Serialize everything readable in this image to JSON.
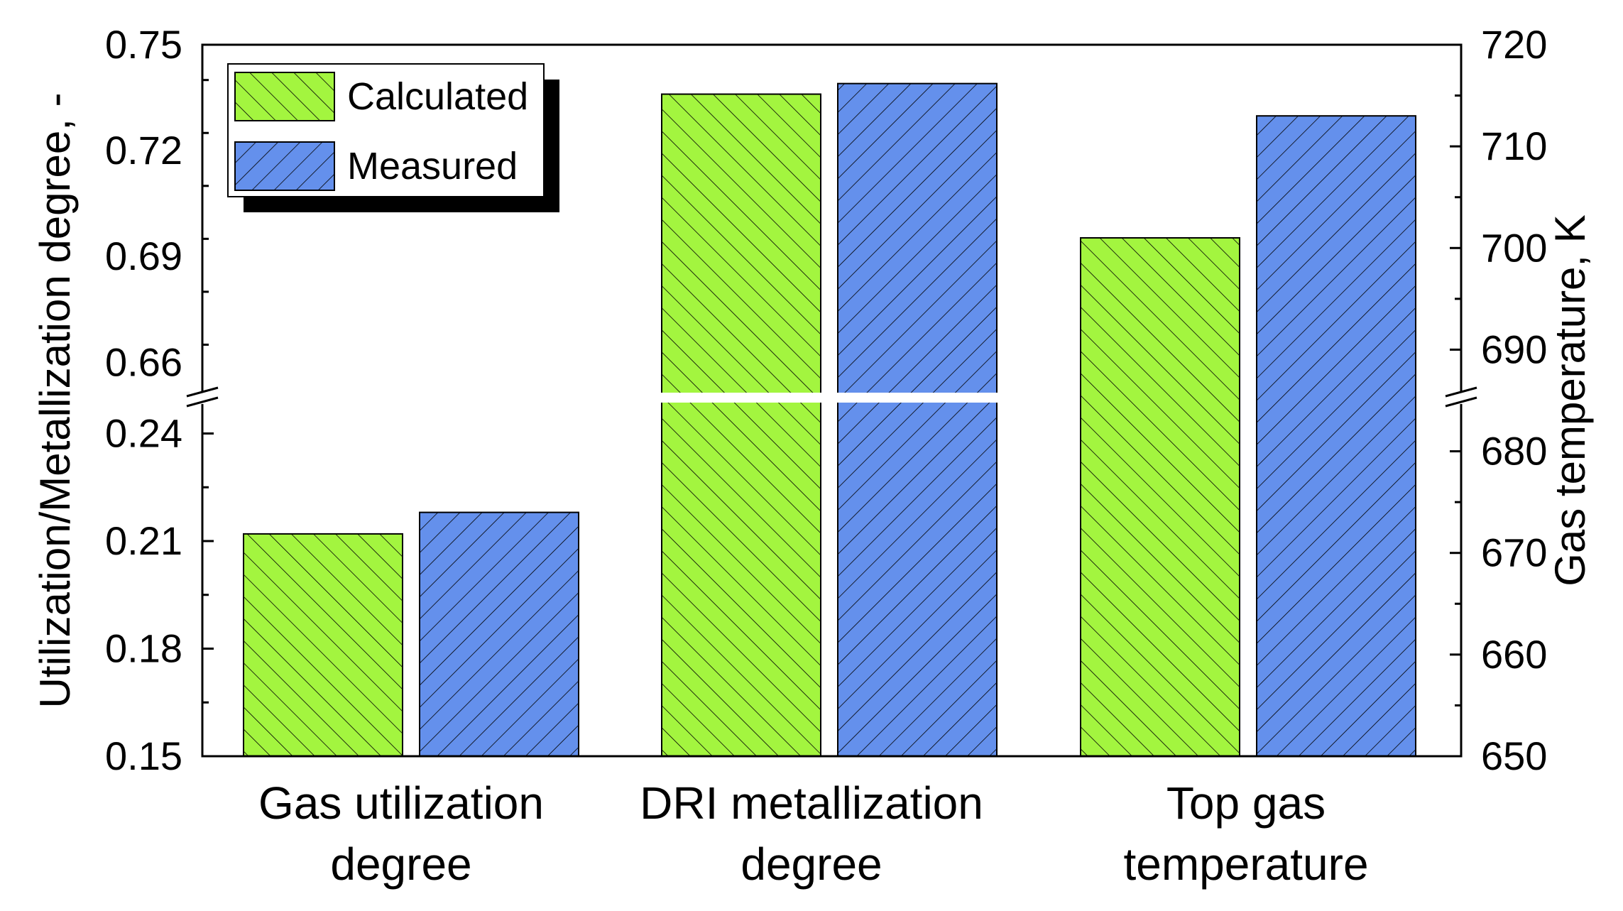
{
  "chart_data": {
    "type": "bar",
    "title": "",
    "categories": [
      [
        "Gas utilization",
        "degree"
      ],
      [
        "DRI metallization",
        "degree"
      ],
      [
        "Top gas",
        "temperature"
      ]
    ],
    "series": [
      {
        "name": "Calculated",
        "color": "#a3f53f",
        "hatch": "forward-diagonal",
        "values": [
          0.212,
          0.736,
          701
        ]
      },
      {
        "name": "Measured",
        "color": "#6490ec",
        "hatch": "backward-diagonal",
        "values": [
          0.218,
          0.739,
          713
        ]
      }
    ],
    "value_axis_for_category": [
      "left",
      "left",
      "right"
    ],
    "left_axis": {
      "label": "Utilization/Metallization degree, -",
      "lower_segment": {
        "range": [
          0.15,
          0.25
        ],
        "ticks": [
          "0.15",
          "0.18",
          "0.21",
          "0.24"
        ],
        "tick_values": [
          0.15,
          0.18,
          0.21,
          0.24
        ]
      },
      "upper_segment": {
        "range": [
          0.65,
          0.75
        ],
        "ticks": [
          "0.66",
          "0.69",
          "0.72",
          "0.75"
        ],
        "tick_values": [
          0.66,
          0.69,
          0.72,
          0.75
        ]
      },
      "broken": true
    },
    "right_axis": {
      "label": "Gas temperature, K",
      "range": [
        650,
        720
      ],
      "ticks": [
        "650",
        "660",
        "670",
        "680",
        "690",
        "700",
        "710",
        "720"
      ],
      "tick_values": [
        650,
        660,
        670,
        680,
        690,
        700,
        710,
        720
      ]
    },
    "legend": {
      "position": "top-left",
      "shadow": true
    },
    "grid": false
  }
}
